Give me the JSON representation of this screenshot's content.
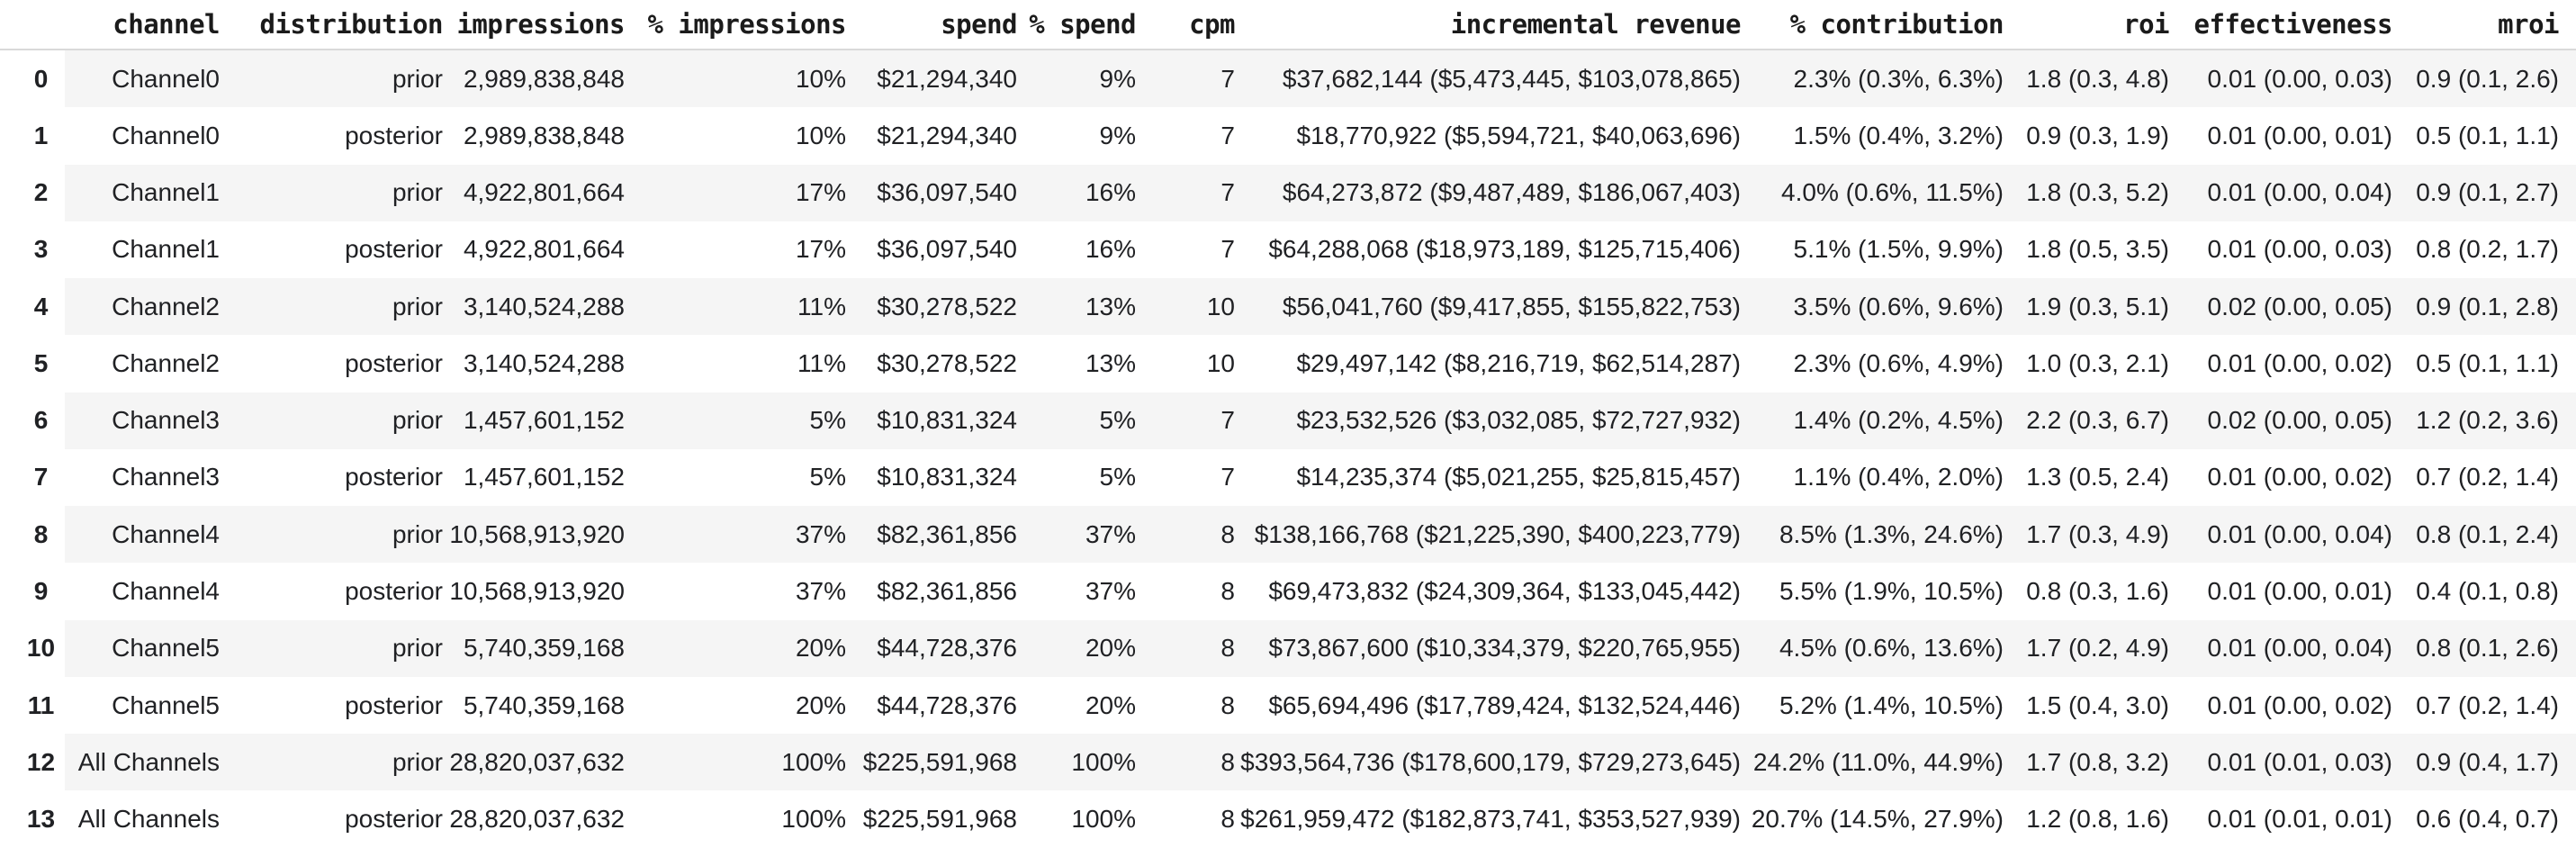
{
  "colors": {
    "row_stripe": "#f5f5f5",
    "row_plain": "#ffffff",
    "header_border": "#d9d9d9",
    "text": "#202124",
    "header_text": "#1b1b1b"
  },
  "chart_data": {
    "type": "table",
    "title": "",
    "columns": [
      "",
      "channel",
      "distribution",
      "impressions",
      "% impressions",
      "spend",
      "% spend",
      "cpm",
      "incremental revenue",
      "% contribution",
      "roi",
      "effectiveness",
      "mroi"
    ],
    "column_keys": [
      "index",
      "channel",
      "distribution",
      "impressions",
      "pct-impressions",
      "spend",
      "pct-spend",
      "cpm",
      "incremental-revenue",
      "pct-contribution",
      "roi",
      "effectiveness",
      "mroi"
    ],
    "rows": [
      [
        "0",
        "Channel0",
        "prior",
        "2,989,838,848",
        "10%",
        "$21,294,340",
        "9%",
        "7",
        "$37,682,144 ($5,473,445, $103,078,865)",
        "2.3% (0.3%, 6.3%)",
        "1.8 (0.3, 4.8)",
        "0.01 (0.00, 0.03)",
        "0.9 (0.1, 2.6)"
      ],
      [
        "1",
        "Channel0",
        "posterior",
        "2,989,838,848",
        "10%",
        "$21,294,340",
        "9%",
        "7",
        "$18,770,922 ($5,594,721, $40,063,696)",
        "1.5% (0.4%, 3.2%)",
        "0.9 (0.3, 1.9)",
        "0.01 (0.00, 0.01)",
        "0.5 (0.1, 1.1)"
      ],
      [
        "2",
        "Channel1",
        "prior",
        "4,922,801,664",
        "17%",
        "$36,097,540",
        "16%",
        "7",
        "$64,273,872 ($9,487,489, $186,067,403)",
        "4.0% (0.6%, 11.5%)",
        "1.8 (0.3, 5.2)",
        "0.01 (0.00, 0.04)",
        "0.9 (0.1, 2.7)"
      ],
      [
        "3",
        "Channel1",
        "posterior",
        "4,922,801,664",
        "17%",
        "$36,097,540",
        "16%",
        "7",
        "$64,288,068 ($18,973,189, $125,715,406)",
        "5.1% (1.5%, 9.9%)",
        "1.8 (0.5, 3.5)",
        "0.01 (0.00, 0.03)",
        "0.8 (0.2, 1.7)"
      ],
      [
        "4",
        "Channel2",
        "prior",
        "3,140,524,288",
        "11%",
        "$30,278,522",
        "13%",
        "10",
        "$56,041,760 ($9,417,855, $155,822,753)",
        "3.5% (0.6%, 9.6%)",
        "1.9 (0.3, 5.1)",
        "0.02 (0.00, 0.05)",
        "0.9 (0.1, 2.8)"
      ],
      [
        "5",
        "Channel2",
        "posterior",
        "3,140,524,288",
        "11%",
        "$30,278,522",
        "13%",
        "10",
        "$29,497,142 ($8,216,719, $62,514,287)",
        "2.3% (0.6%, 4.9%)",
        "1.0 (0.3, 2.1)",
        "0.01 (0.00, 0.02)",
        "0.5 (0.1, 1.1)"
      ],
      [
        "6",
        "Channel3",
        "prior",
        "1,457,601,152",
        "5%",
        "$10,831,324",
        "5%",
        "7",
        "$23,532,526 ($3,032,085, $72,727,932)",
        "1.4% (0.2%, 4.5%)",
        "2.2 (0.3, 6.7)",
        "0.02 (0.00, 0.05)",
        "1.2 (0.2, 3.6)"
      ],
      [
        "7",
        "Channel3",
        "posterior",
        "1,457,601,152",
        "5%",
        "$10,831,324",
        "5%",
        "7",
        "$14,235,374 ($5,021,255, $25,815,457)",
        "1.1% (0.4%, 2.0%)",
        "1.3 (0.5, 2.4)",
        "0.01 (0.00, 0.02)",
        "0.7 (0.2, 1.4)"
      ],
      [
        "8",
        "Channel4",
        "prior",
        "10,568,913,920",
        "37%",
        "$82,361,856",
        "37%",
        "8",
        "$138,166,768 ($21,225,390, $400,223,779)",
        "8.5% (1.3%, 24.6%)",
        "1.7 (0.3, 4.9)",
        "0.01 (0.00, 0.04)",
        "0.8 (0.1, 2.4)"
      ],
      [
        "9",
        "Channel4",
        "posterior",
        "10,568,913,920",
        "37%",
        "$82,361,856",
        "37%",
        "8",
        "$69,473,832 ($24,309,364, $133,045,442)",
        "5.5% (1.9%, 10.5%)",
        "0.8 (0.3, 1.6)",
        "0.01 (0.00, 0.01)",
        "0.4 (0.1, 0.8)"
      ],
      [
        "10",
        "Channel5",
        "prior",
        "5,740,359,168",
        "20%",
        "$44,728,376",
        "20%",
        "8",
        "$73,867,600 ($10,334,379, $220,765,955)",
        "4.5% (0.6%, 13.6%)",
        "1.7 (0.2, 4.9)",
        "0.01 (0.00, 0.04)",
        "0.8 (0.1, 2.6)"
      ],
      [
        "11",
        "Channel5",
        "posterior",
        "5,740,359,168",
        "20%",
        "$44,728,376",
        "20%",
        "8",
        "$65,694,496 ($17,789,424, $132,524,446)",
        "5.2% (1.4%, 10.5%)",
        "1.5 (0.4, 3.0)",
        "0.01 (0.00, 0.02)",
        "0.7 (0.2, 1.4)"
      ],
      [
        "12",
        "All Channels",
        "prior",
        "28,820,037,632",
        "100%",
        "$225,591,968",
        "100%",
        "8",
        "$393,564,736 ($178,600,179, $729,273,645)",
        "24.2% (11.0%, 44.9%)",
        "1.7 (0.8, 3.2)",
        "0.01 (0.01, 0.03)",
        "0.9 (0.4, 1.7)"
      ],
      [
        "13",
        "All Channels",
        "posterior",
        "28,820,037,632",
        "100%",
        "$225,591,968",
        "100%",
        "8",
        "$261,959,472 ($182,873,741, $353,527,939)",
        "20.7% (14.5%, 27.9%)",
        "1.2 (0.8, 1.6)",
        "0.01 (0.01, 0.01)",
        "0.6 (0.4, 0.7)"
      ]
    ],
    "layout": {
      "grid": false,
      "zebra_striping": true,
      "alignment": "index centered, channel and all numeric columns right-aligned"
    }
  }
}
